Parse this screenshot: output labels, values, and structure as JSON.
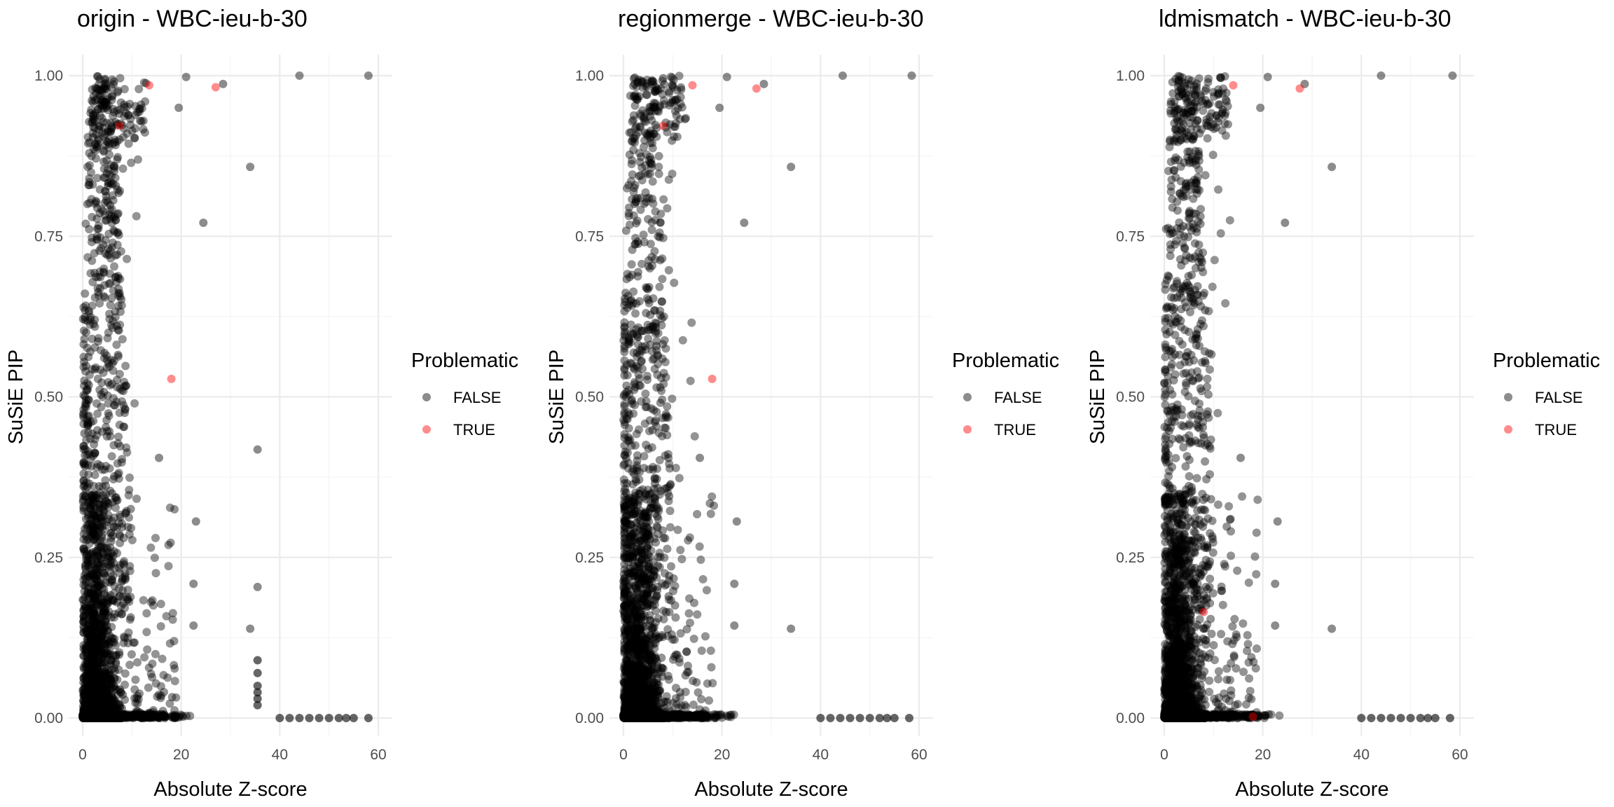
{
  "chart_data": [
    {
      "type": "scatter",
      "title": "origin - WBC-ieu-b-30",
      "xlabel": "Absolute Z-score",
      "ylabel": "SuSiE PIP",
      "xlim": [
        0,
        60
      ],
      "ylim": [
        0,
        1
      ],
      "xticks": [
        "0",
        "20",
        "40",
        "60"
      ],
      "yticks": [
        "0.00",
        "0.25",
        "0.50",
        "0.75",
        "1.00"
      ],
      "legend": {
        "title": "Problematic",
        "entries": [
          "FALSE",
          "TRUE"
        ],
        "colors": [
          "#000000",
          "#ff0000"
        ],
        "placement": "right"
      },
      "true_points": [
        {
          "x": 13.5,
          "y": 0.985
        },
        {
          "x": 27.0,
          "y": 0.982
        },
        {
          "x": 7.5,
          "y": 0.922
        },
        {
          "x": 18.0,
          "y": 0.528
        }
      ],
      "false_highlight_points": [
        {
          "x": 44.0,
          "y": 1.0
        },
        {
          "x": 58.0,
          "y": 1.0
        },
        {
          "x": 34.0,
          "y": 0.858
        },
        {
          "x": 24.5,
          "y": 0.771
        },
        {
          "x": 35.5,
          "y": 0.418
        },
        {
          "x": 35.5,
          "y": 0.204
        },
        {
          "x": 34.0,
          "y": 0.139
        },
        {
          "x": 23.0,
          "y": 0.306
        },
        {
          "x": 22.5,
          "y": 0.209
        },
        {
          "x": 22.5,
          "y": 0.144
        },
        {
          "x": 28.5,
          "y": 0.987
        },
        {
          "x": 21.0,
          "y": 0.998
        },
        {
          "x": 19.5,
          "y": 0.95
        },
        {
          "x": 15.5,
          "y": 0.405
        }
      ],
      "tail_points": [
        {
          "x": 40,
          "y": 0.0
        },
        {
          "x": 42,
          "y": 0.0
        },
        {
          "x": 44,
          "y": 0.0
        },
        {
          "x": 46,
          "y": 0.0
        },
        {
          "x": 48,
          "y": 0.0
        },
        {
          "x": 50,
          "y": 0.0
        },
        {
          "x": 52,
          "y": 0.0
        },
        {
          "x": 53.5,
          "y": 0.0
        },
        {
          "x": 55,
          "y": 0.0
        },
        {
          "x": 58,
          "y": 0.0
        },
        {
          "x": 35.5,
          "y": 0.09
        },
        {
          "x": 35.5,
          "y": 0.07
        },
        {
          "x": 35.5,
          "y": 0.05
        },
        {
          "x": 35.5,
          "y": 0.04
        },
        {
          "x": 35.5,
          "y": 0.03
        },
        {
          "x": 35.5,
          "y": 0.02
        }
      ]
    },
    {
      "type": "scatter",
      "title": "regionmerge - WBC-ieu-b-30",
      "xlabel": "Absolute Z-score",
      "ylabel": "SuSiE PIP",
      "xlim": [
        0,
        60
      ],
      "ylim": [
        0,
        1
      ],
      "xticks": [
        "0",
        "20",
        "40",
        "60"
      ],
      "yticks": [
        "0.00",
        "0.25",
        "0.50",
        "0.75",
        "1.00"
      ],
      "legend": {
        "title": "Problematic",
        "entries": [
          "FALSE",
          "TRUE"
        ],
        "colors": [
          "#000000",
          "#ff0000"
        ],
        "placement": "right"
      },
      "true_points": [
        {
          "x": 14.0,
          "y": 0.985
        },
        {
          "x": 27.0,
          "y": 0.98
        },
        {
          "x": 8.0,
          "y": 0.922
        },
        {
          "x": 18.0,
          "y": 0.528
        }
      ],
      "false_highlight_points": [
        {
          "x": 44.5,
          "y": 1.0
        },
        {
          "x": 58.5,
          "y": 1.0
        },
        {
          "x": 34.0,
          "y": 0.858
        },
        {
          "x": 24.5,
          "y": 0.771
        },
        {
          "x": 34.0,
          "y": 0.139
        },
        {
          "x": 23.0,
          "y": 0.306
        },
        {
          "x": 22.5,
          "y": 0.209
        },
        {
          "x": 22.5,
          "y": 0.144
        },
        {
          "x": 28.5,
          "y": 0.987
        },
        {
          "x": 21.0,
          "y": 0.998
        },
        {
          "x": 19.5,
          "y": 0.95
        },
        {
          "x": 15.5,
          "y": 0.405
        }
      ],
      "tail_points": [
        {
          "x": 40,
          "y": 0.0
        },
        {
          "x": 42,
          "y": 0.0
        },
        {
          "x": 44,
          "y": 0.0
        },
        {
          "x": 46,
          "y": 0.0
        },
        {
          "x": 48,
          "y": 0.0
        },
        {
          "x": 50,
          "y": 0.0
        },
        {
          "x": 52,
          "y": 0.0
        },
        {
          "x": 53.5,
          "y": 0.0
        },
        {
          "x": 55,
          "y": 0.0
        },
        {
          "x": 58,
          "y": 0.0
        }
      ]
    },
    {
      "type": "scatter",
      "title": "ldmismatch - WBC-ieu-b-30",
      "xlabel": "Absolute Z-score",
      "ylabel": "SuSiE PIP",
      "xlim": [
        0,
        60
      ],
      "ylim": [
        0,
        1
      ],
      "xticks": [
        "0",
        "20",
        "40",
        "60"
      ],
      "yticks": [
        "0.00",
        "0.25",
        "0.50",
        "0.75",
        "1.00"
      ],
      "legend": {
        "title": "Problematic",
        "entries": [
          "FALSE",
          "TRUE"
        ],
        "colors": [
          "#000000",
          "#ff0000"
        ],
        "placement": "right"
      },
      "true_points": [
        {
          "x": 14.0,
          "y": 0.985
        },
        {
          "x": 27.5,
          "y": 0.98
        },
        {
          "x": 8.0,
          "y": 0.165
        },
        {
          "x": 18.0,
          "y": 0.002
        }
      ],
      "false_highlight_points": [
        {
          "x": 44.0,
          "y": 1.0
        },
        {
          "x": 58.5,
          "y": 1.0
        },
        {
          "x": 34.0,
          "y": 0.858
        },
        {
          "x": 24.5,
          "y": 0.771
        },
        {
          "x": 34.0,
          "y": 0.139
        },
        {
          "x": 23.0,
          "y": 0.306
        },
        {
          "x": 22.5,
          "y": 0.209
        },
        {
          "x": 22.5,
          "y": 0.144
        },
        {
          "x": 28.5,
          "y": 0.987
        },
        {
          "x": 21.0,
          "y": 0.998
        },
        {
          "x": 19.5,
          "y": 0.95
        },
        {
          "x": 15.5,
          "y": 0.405
        }
      ],
      "tail_points": [
        {
          "x": 40,
          "y": 0.0
        },
        {
          "x": 42,
          "y": 0.0
        },
        {
          "x": 44,
          "y": 0.0
        },
        {
          "x": 46,
          "y": 0.0
        },
        {
          "x": 48,
          "y": 0.0
        },
        {
          "x": 50,
          "y": 0.0
        },
        {
          "x": 52,
          "y": 0.0
        },
        {
          "x": 53.5,
          "y": 0.0
        },
        {
          "x": 55,
          "y": 0.0
        },
        {
          "x": 58,
          "y": 0.0
        }
      ]
    }
  ]
}
